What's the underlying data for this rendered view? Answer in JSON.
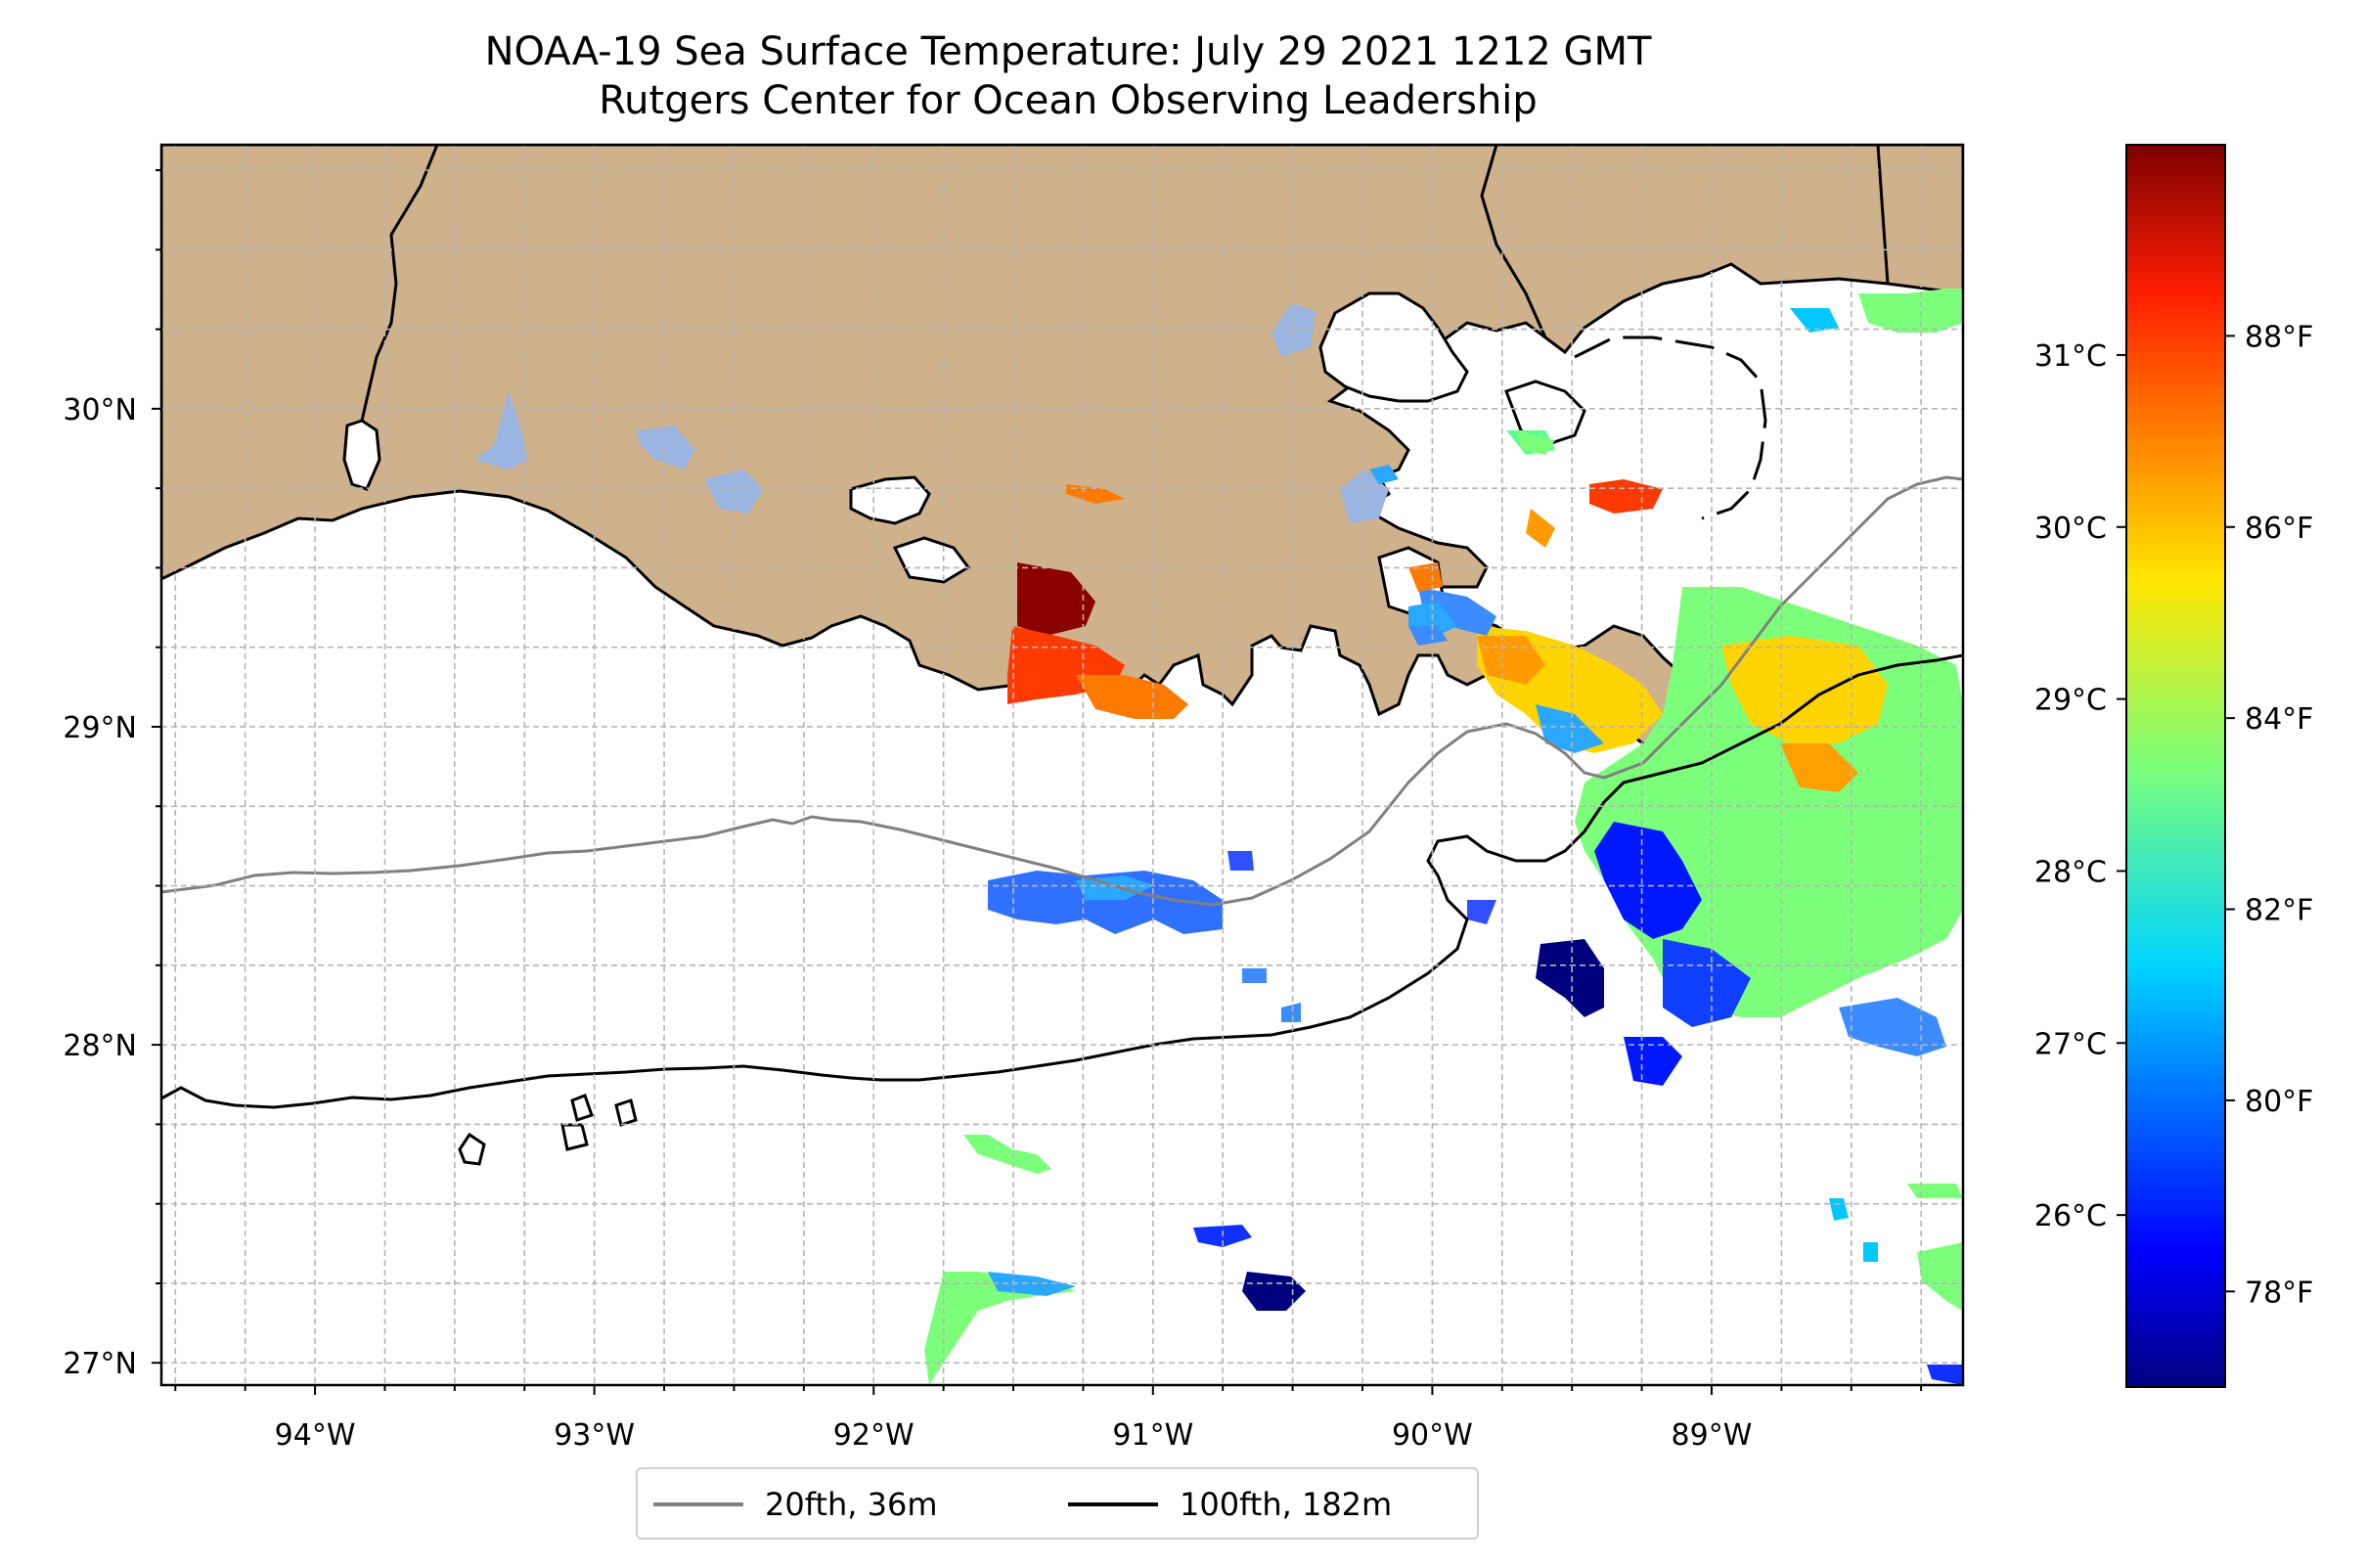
{
  "title": {
    "line1": "NOAA-19 Sea Surface Temperature: July 29 2021 1212 GMT",
    "line2": "Rutgers Center for Ocean Observing Leadership"
  },
  "map": {
    "lon_range": [
      -94.55,
      -88.1
    ],
    "lat_range": [
      26.93,
      30.83
    ],
    "lon_ticks": [
      {
        "value": -94,
        "label": "94°W"
      },
      {
        "value": -93,
        "label": "93°W"
      },
      {
        "value": -92,
        "label": "92°W"
      },
      {
        "value": -91,
        "label": "91°W"
      },
      {
        "value": -90,
        "label": "90°W"
      },
      {
        "value": -89,
        "label": "89°W"
      }
    ],
    "lat_ticks": [
      {
        "value": 30,
        "label": "30°N"
      },
      {
        "value": 29,
        "label": "29°N"
      },
      {
        "value": 28,
        "label": "28°N"
      },
      {
        "value": 27,
        "label": "27°N"
      }
    ],
    "gridlines": true,
    "land_color": "#cfb28b",
    "lake_color": "#9ab5e2"
  },
  "colorbar": {
    "colormap": "jet",
    "celsius_ticks": [
      "31°C",
      "30°C",
      "29°C",
      "28°C",
      "27°C",
      "26°C"
    ],
    "fahrenheit_ticks": [
      "88°F",
      "86°F",
      "84°F",
      "82°F",
      "80°F",
      "78°F"
    ],
    "range_f": [
      77,
      90
    ]
  },
  "legend": {
    "placement": "bottom-center",
    "entries": [
      {
        "label": "20fth, 36m",
        "color": "#808080"
      },
      {
        "label": "100fth, 182m",
        "color": "#000000"
      }
    ]
  }
}
